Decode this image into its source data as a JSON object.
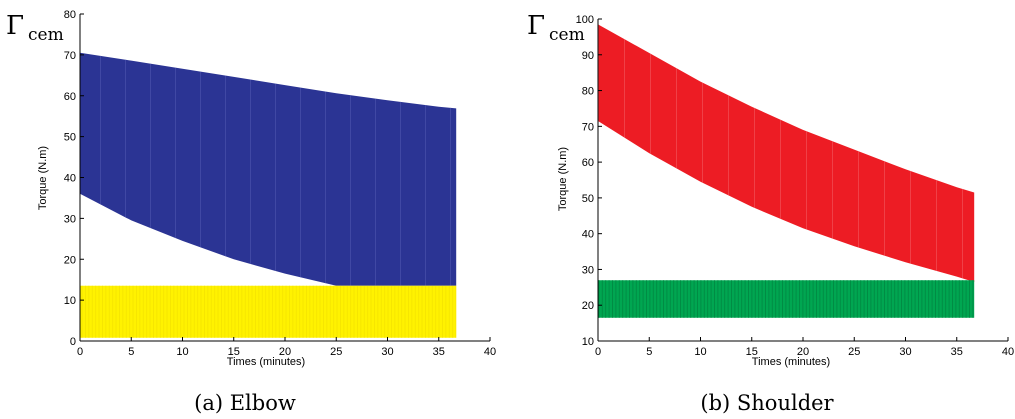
{
  "chart_data": [
    {
      "type": "area",
      "caption": "(a)  Elbow",
      "corner_symbol": "Γ",
      "corner_subscript": "cem",
      "xlabel": "Times (minutes)",
      "ylabel": "Torque (N.m)",
      "xlim": [
        0,
        40
      ],
      "ylim": [
        0,
        80
      ],
      "xticks": [
        0,
        5,
        10,
        15,
        20,
        25,
        30,
        35,
        40
      ],
      "yticks": [
        0,
        10,
        20,
        30,
        40,
        50,
        60,
        70,
        80
      ],
      "grid": false,
      "series": [
        {
          "color": "#2b3494",
          "x": [
            0,
            5,
            10,
            15,
            20,
            25,
            30,
            35,
            36.7
          ],
          "upper": [
            70.5,
            68.6,
            66.6,
            64.6,
            62.6,
            60.6,
            58.9,
            57.3,
            56.9
          ],
          "lower": [
            36.0,
            29.5,
            24.5,
            20.0,
            16.5,
            13.5,
            13.5,
            13.5,
            13.5
          ]
        },
        {
          "color": "#fff200",
          "x": [
            0,
            36.7
          ],
          "upper": [
            13.5,
            13.5
          ],
          "lower": [
            0.8,
            0.8
          ]
        }
      ]
    },
    {
      "type": "area",
      "caption": "(b)  Shoulder",
      "corner_symbol": "Γ",
      "corner_subscript": "cem",
      "xlabel": "Times (minutes)",
      "ylabel": "Torque (N.m)",
      "xlim": [
        0,
        40
      ],
      "ylim": [
        10,
        100
      ],
      "xticks": [
        0,
        5,
        10,
        15,
        20,
        25,
        30,
        35,
        40
      ],
      "yticks": [
        10,
        20,
        30,
        40,
        50,
        60,
        70,
        80,
        90,
        100
      ],
      "grid": false,
      "series": [
        {
          "color": "#ed1c24",
          "x": [
            0,
            5,
            10,
            15,
            20,
            25,
            30,
            35,
            36.7
          ],
          "upper": [
            98.5,
            90.5,
            82.5,
            75.5,
            69.0,
            63.5,
            58.0,
            53.0,
            51.5
          ],
          "lower": [
            71.5,
            62.5,
            54.5,
            47.5,
            41.5,
            36.5,
            32.0,
            28.0,
            26.5
          ]
        },
        {
          "color": "#00a651",
          "x": [
            0,
            36.7
          ],
          "upper": [
            27.0,
            27.0
          ],
          "lower": [
            16.5,
            16.5
          ]
        }
      ]
    }
  ]
}
